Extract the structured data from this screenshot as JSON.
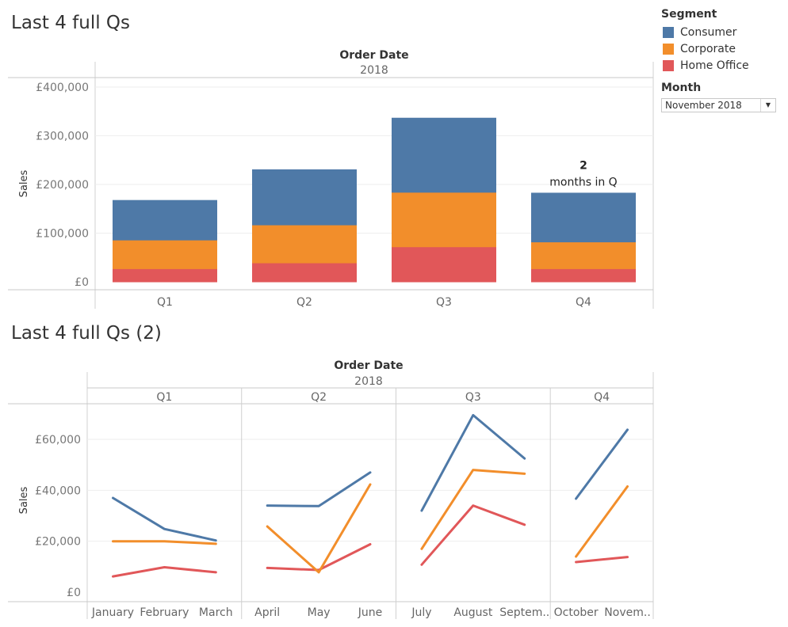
{
  "titles": {
    "chart1": "Last 4 full Qs",
    "chart2": "Last 4 full Qs (2)"
  },
  "legend": {
    "title": "Segment",
    "items": [
      {
        "label": "Consumer",
        "color": "#4e79a7"
      },
      {
        "label": "Corporate",
        "color": "#f28e2b"
      },
      {
        "label": "Home Office",
        "color": "#e15759"
      }
    ]
  },
  "filter": {
    "title": "Month",
    "value": "November 2018"
  },
  "chart_data": [
    {
      "type": "bar",
      "stacked": true,
      "header_top": "Order Date",
      "header_year": "2018",
      "ylabel": "Sales",
      "ylim": [
        0,
        420000
      ],
      "yticks": [
        0,
        100000,
        200000,
        300000,
        400000
      ],
      "ytick_labels": [
        "£0",
        "£100,000",
        "£200,000",
        "£300,000",
        "£400,000"
      ],
      "categories": [
        "Q1",
        "Q2",
        "Q3",
        "Q4"
      ],
      "series": [
        {
          "name": "Home Office",
          "values": [
            27000,
            39000,
            72000,
            27000
          ]
        },
        {
          "name": "Corporate",
          "values": [
            59000,
            78000,
            112000,
            55000
          ]
        },
        {
          "name": "Consumer",
          "values": [
            82000,
            114000,
            153000,
            101000
          ]
        }
      ],
      "annotation": {
        "category": "Q4",
        "line1": "2",
        "line2": "months in Q"
      }
    },
    {
      "type": "line",
      "header_top": "Order Date",
      "header_year": "2018",
      "ylabel": "Sales",
      "ylim": [
        0,
        72000
      ],
      "yticks": [
        0,
        20000,
        40000,
        60000
      ],
      "ytick_labels": [
        "£0",
        "£20,000",
        "£40,000",
        "£60,000"
      ],
      "panels": [
        {
          "label": "Q1",
          "months": [
            "January",
            "February",
            "March"
          ],
          "series": {
            "Consumer": [
              37000,
              24800,
              20300
            ],
            "Corporate": [
              20000,
              20000,
              19000
            ],
            "Home Office": [
              6200,
              9800,
              7800
            ]
          }
        },
        {
          "label": "Q2",
          "months": [
            "April",
            "May",
            "June"
          ],
          "series": {
            "Consumer": [
              34000,
              33800,
              47000
            ],
            "Corporate": [
              25800,
              7800,
              42300
            ],
            "Home Office": [
              9500,
              8700,
              18800
            ]
          }
        },
        {
          "label": "Q3",
          "months": [
            "July",
            "August",
            "Septem.."
          ],
          "series": {
            "Consumer": [
              32000,
              69500,
              52500
            ],
            "Corporate": [
              17000,
              48000,
              46500
            ],
            "Home Office": [
              10800,
              34000,
              26500
            ]
          }
        },
        {
          "label": "Q4",
          "months": [
            "October",
            "Novem.."
          ],
          "series": {
            "Consumer": [
              36700,
              63800
            ],
            "Corporate": [
              14000,
              41500
            ],
            "Home Office": [
              11800,
              13800
            ]
          }
        }
      ]
    }
  ]
}
